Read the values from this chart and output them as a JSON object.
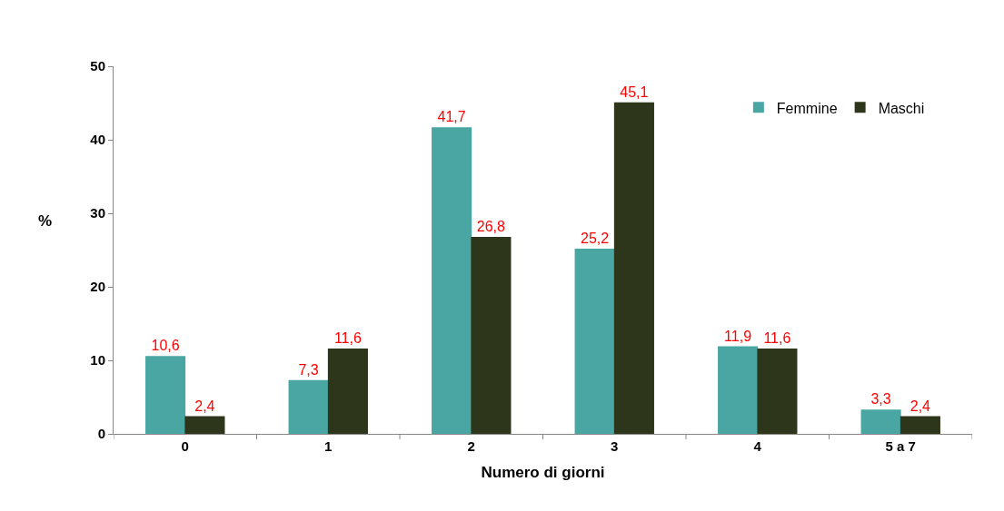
{
  "chart_data": {
    "type": "bar",
    "xlabel": "Numero di giorni",
    "ylabel": "%",
    "categories": [
      "0",
      "1",
      "2",
      "3",
      "4",
      "5 a 7"
    ],
    "series": [
      {
        "name": "Femmine",
        "color": "#4aa6a3",
        "values": [
          10.6,
          7.3,
          41.7,
          25.2,
          11.9,
          3.3
        ],
        "value_labels": [
          "10,6",
          "7,3",
          "41,7",
          "25,2",
          "11,9",
          "3,3"
        ]
      },
      {
        "name": "Maschi",
        "color": "#2d361a",
        "values": [
          2.4,
          11.6,
          26.8,
          45.1,
          11.6,
          2.4
        ],
        "value_labels": [
          "2,4",
          "11,6",
          "26,8",
          "45,1",
          "11,6",
          "2,4"
        ]
      }
    ],
    "ylim": [
      0,
      50
    ],
    "yticks": [
      0,
      10,
      20,
      30,
      40,
      50
    ],
    "grid": false,
    "legend": "top right"
  }
}
